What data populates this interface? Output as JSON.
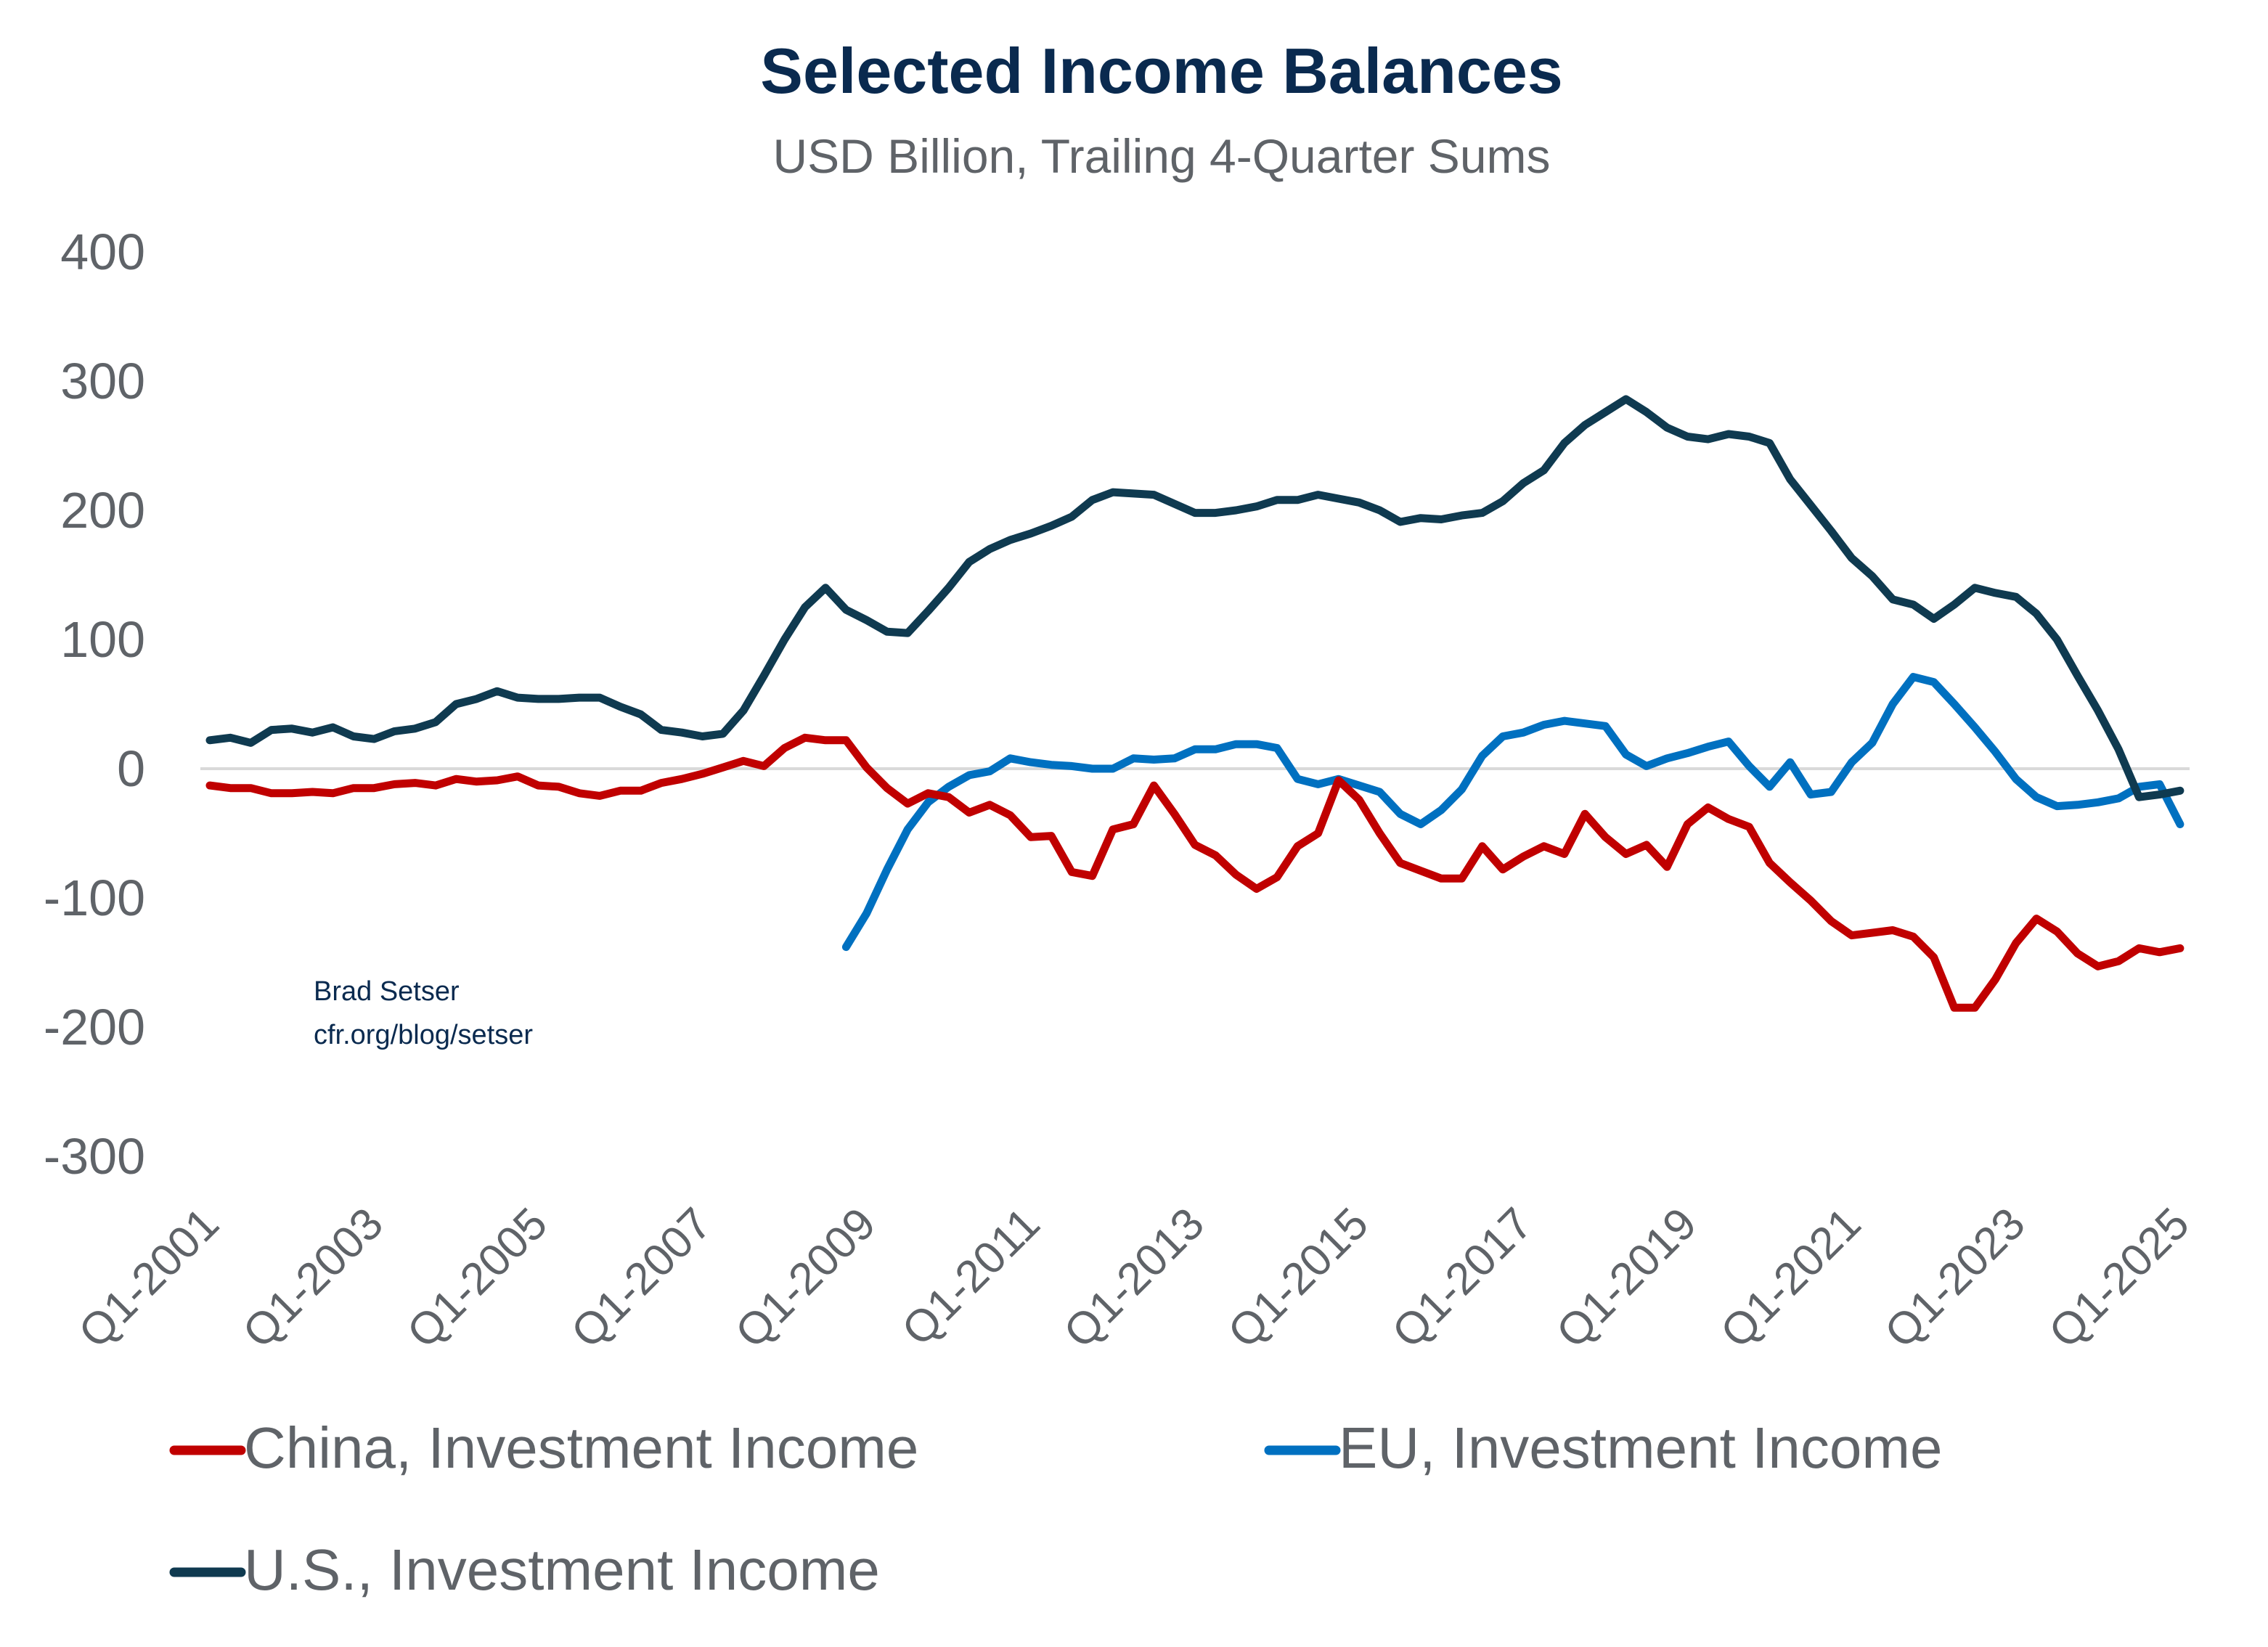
{
  "chart_data": {
    "type": "line",
    "title": "Selected Income Balances",
    "subtitle": "USD Billion, Trailing 4-Quarter Sums",
    "xlabel": "",
    "ylabel": "",
    "ylim": [
      -300,
      400
    ],
    "yticks": [
      400,
      300,
      200,
      100,
      0,
      -100,
      -200,
      -300
    ],
    "ytick_labels": [
      "400",
      "300",
      "200",
      "100",
      "0",
      "-100",
      "-200",
      "-300"
    ],
    "x_start": "Q1-2001",
    "x_end": "Q1-2025",
    "num_quarters": 97,
    "xtick_labels": [
      "Q1-2001",
      "Q1-2003",
      "Q1-2005",
      "Q1-2007",
      "Q1-2009",
      "Q1-2011",
      "Q1-2013",
      "Q1-2015",
      "Q1-2017",
      "Q1-2019",
      "Q1-2021",
      "Q1-2023",
      "Q1-2025"
    ],
    "xtick_every_quarters": 8,
    "grid": false,
    "zero_line": true,
    "legend_position": "bottom",
    "annotation": [
      "Brad Setser",
      "cfr.org/blog/setser"
    ],
    "series": [
      {
        "name": "China, Investment Income",
        "color": "#c00000",
        "start_index": 0,
        "values": [
          -13,
          -15,
          -15,
          -19,
          -19,
          -18,
          -19,
          -15,
          -15,
          -12,
          -11,
          -13,
          -8,
          -10,
          -9,
          -6,
          -13,
          -14,
          -19,
          -21,
          -17,
          -17,
          -11,
          -8,
          -4,
          1,
          6,
          2,
          16,
          24,
          22,
          22,
          1,
          -15,
          -27,
          -19,
          -22,
          -34,
          -28,
          -36,
          -53,
          -52,
          -80,
          -83,
          -47,
          -43,
          -13,
          -35,
          -59,
          -67,
          -82,
          -93,
          -84,
          -60,
          -50,
          -9,
          -24,
          -50,
          -73,
          -79,
          -85,
          -85,
          -60,
          -78,
          -68,
          -60,
          -66,
          -35,
          -53,
          -66,
          -59,
          -76,
          -43,
          -30,
          -39,
          -45,
          -73,
          -88,
          -102,
          -118,
          -129,
          -127,
          -125,
          -130,
          -146,
          -185,
          -185,
          -163,
          -135,
          -116,
          -126,
          -143,
          -153,
          -149,
          -139,
          -142,
          -139
        ]
      },
      {
        "name": "EU, Investment Income",
        "color": "#0070c0",
        "start_index": 31,
        "values": [
          -138,
          -112,
          -78,
          -47,
          -26,
          -14,
          -5,
          -2,
          8,
          5,
          3,
          2,
          0,
          0,
          8,
          7,
          8,
          15,
          15,
          19,
          19,
          16,
          -8,
          -12,
          -8,
          -13,
          -18,
          -35,
          -43,
          -32,
          -16,
          10,
          25,
          28,
          34,
          37,
          35,
          33,
          11,
          2,
          8,
          12,
          17,
          21,
          2,
          -14,
          5,
          -20,
          -18,
          5,
          20,
          50,
          71,
          67,
          50,
          32,
          13,
          -8,
          -22,
          -29,
          -28,
          -26,
          -23,
          -14,
          -12,
          -43
        ]
      },
      {
        "name": "U.S., Investment Income",
        "color": "#0f3a50",
        "start_index": 0,
        "values": [
          22,
          24,
          20,
          30,
          31,
          28,
          32,
          25,
          23,
          29,
          31,
          36,
          50,
          54,
          60,
          55,
          54,
          54,
          55,
          55,
          48,
          42,
          30,
          28,
          25,
          27,
          45,
          72,
          100,
          125,
          140,
          123,
          115,
          106,
          105,
          122,
          140,
          160,
          170,
          177,
          182,
          188,
          195,
          208,
          214,
          213,
          212,
          205,
          198,
          198,
          200,
          203,
          208,
          208,
          212,
          209,
          206,
          200,
          191,
          194,
          193,
          196,
          198,
          207,
          221,
          231,
          252,
          266,
          276,
          286,
          276,
          264,
          257,
          255,
          259,
          257,
          252,
          224,
          204,
          184,
          163,
          149,
          131,
          127,
          116,
          127,
          140,
          136,
          133,
          120,
          100,
          72,
          45,
          15,
          -22,
          -20,
          -17
        ]
      }
    ]
  }
}
